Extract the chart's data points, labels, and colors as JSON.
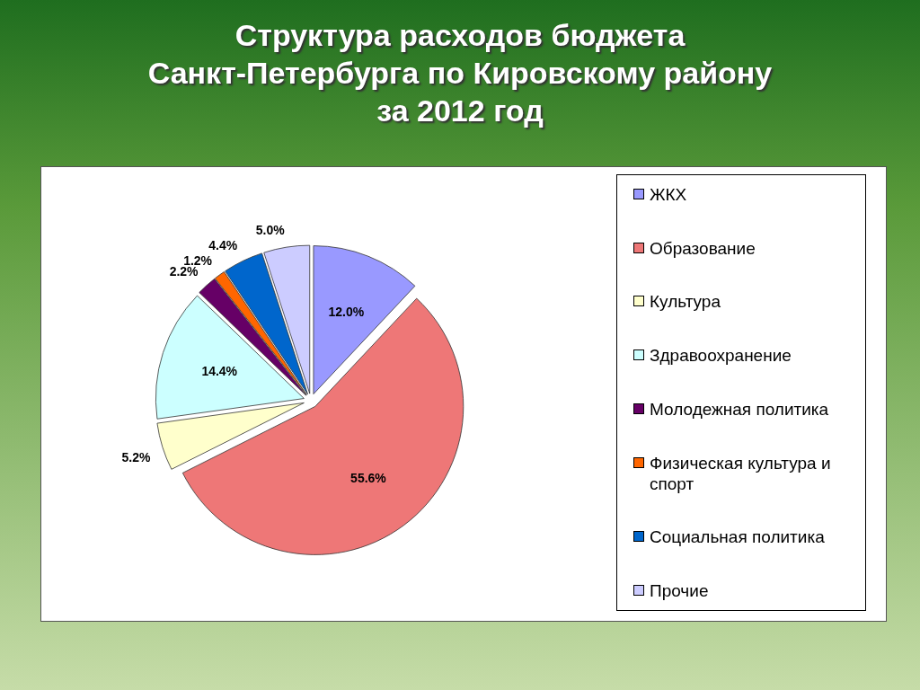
{
  "chart_data": {
    "type": "pie",
    "title": "Структура расходов бюджета\nСанкт-Петербурга по Кировскому району\nза 2012 год",
    "categories": [
      "ЖКХ",
      "Образование",
      "Культура",
      "Здравоохранение",
      "Молодежная политика",
      "Физическая культура и спорт",
      "Социальная политика",
      "Прочие"
    ],
    "values": [
      12.0,
      55.6,
      5.2,
      14.4,
      2.2,
      1.2,
      4.4,
      5.0
    ],
    "value_labels": [
      "12.0%",
      "55.6%",
      "5.2%",
      "14.4%",
      "2.2%",
      "1.2%",
      "4.4%",
      "5.0%"
    ],
    "colors": [
      "#9999ff",
      "#ee7777",
      "#ffffcc",
      "#ccffff",
      "#660066",
      "#ff6600",
      "#0066cc",
      "#ccccff"
    ],
    "legend": "right"
  }
}
